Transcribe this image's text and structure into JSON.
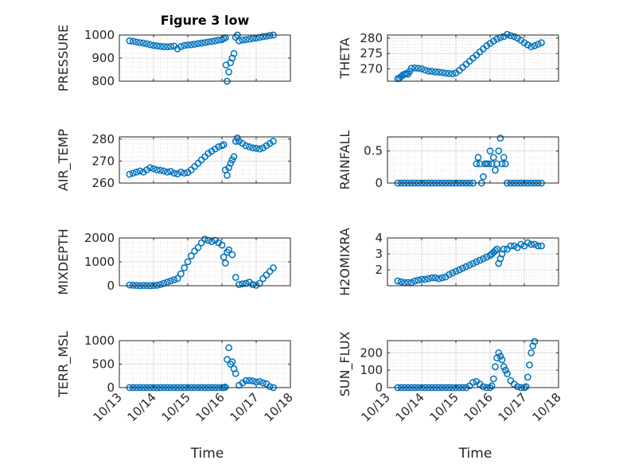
{
  "chart_data": {
    "type": "scatter",
    "title": "Figure 3 low",
    "xlabel": "Time",
    "xlim": [
      13,
      18
    ],
    "x_ticks": [
      13,
      14,
      15,
      16,
      17,
      18
    ],
    "x_tick_labels": [
      "10/13",
      "10/14",
      "10/15",
      "10/16",
      "10/17",
      "10/18"
    ],
    "marker_color": "#0072BD",
    "axis_color": "#262626",
    "grid_color": "#d9d9d9",
    "panels": [
      {
        "id": "pressure",
        "title": "Figure 3 low",
        "ylabel": "PRESSURE",
        "ylim": [
          800,
          1000
        ],
        "y_ticks": [
          800,
          900,
          1000
        ],
        "y_tick_labels": [
          "800",
          "900",
          "1000"
        ],
        "x": [
          13.3,
          13.4,
          13.5,
          13.6,
          13.7,
          13.8,
          13.9,
          14.0,
          14.1,
          14.2,
          14.3,
          14.4,
          14.5,
          14.6,
          14.7,
          14.8,
          14.9,
          15.0,
          15.1,
          15.2,
          15.3,
          15.4,
          15.5,
          15.6,
          15.7,
          15.8,
          15.9,
          16.0,
          16.05,
          16.1,
          16.12,
          16.15,
          16.2,
          16.25,
          16.3,
          16.35,
          16.4,
          16.45,
          16.5,
          16.6,
          16.7,
          16.8,
          16.9,
          17.0,
          17.1,
          17.2,
          17.3,
          17.4,
          17.5
        ],
        "y": [
          975,
          973,
          970,
          967,
          965,
          962,
          958,
          955,
          953,
          951,
          950,
          949,
          950,
          952,
          940,
          950,
          955,
          957,
          958,
          960,
          963,
          965,
          967,
          970,
          972,
          975,
          978,
          980,
          985,
          988,
          870,
          800,
          840,
          880,
          900,
          920,
          990,
          1000,
          975,
          978,
          980,
          982,
          985,
          987,
          990,
          993,
          995,
          998,
          1000
        ]
      },
      {
        "id": "theta",
        "ylabel": "THETA",
        "ylim": [
          266,
          281
        ],
        "y_ticks": [
          270,
          275,
          280
        ],
        "y_tick_labels": [
          "270",
          "275",
          "280"
        ],
        "x": [
          13.3,
          13.35,
          13.4,
          13.45,
          13.5,
          13.55,
          13.6,
          13.65,
          13.7,
          13.8,
          13.9,
          14.0,
          14.1,
          14.2,
          14.3,
          14.4,
          14.5,
          14.6,
          14.7,
          14.8,
          14.9,
          15.0,
          15.1,
          15.2,
          15.3,
          15.4,
          15.5,
          15.6,
          15.7,
          15.8,
          15.9,
          16.0,
          16.1,
          16.2,
          16.3,
          16.4,
          16.5,
          16.6,
          16.7,
          16.8,
          16.9,
          17.0,
          17.1,
          17.2,
          17.3,
          17.4,
          17.5
        ],
        "y": [
          266.8,
          267.0,
          267.5,
          268.0,
          268.3,
          268.5,
          268.3,
          269.2,
          270.2,
          270.3,
          270.2,
          270.0,
          269.6,
          269.3,
          269.2,
          269.0,
          268.9,
          268.8,
          268.6,
          268.5,
          268.4,
          268.7,
          269.5,
          270.5,
          271.5,
          272.5,
          273.5,
          274.5,
          275.5,
          276.5,
          277.5,
          278.3,
          279.0,
          279.7,
          280.2,
          280.5,
          281.2,
          280.8,
          280.5,
          280.0,
          279.3,
          278.5,
          277.8,
          277.2,
          277.5,
          278.0,
          278.5
        ]
      },
      {
        "id": "air_temp",
        "ylabel": "AIR_TEMP",
        "ylim": [
          260,
          281
        ],
        "y_ticks": [
          260,
          270,
          280
        ],
        "y_tick_labels": [
          "260",
          "270",
          "280"
        ],
        "x": [
          13.3,
          13.4,
          13.5,
          13.6,
          13.7,
          13.8,
          13.9,
          14.0,
          14.1,
          14.2,
          14.3,
          14.4,
          14.5,
          14.6,
          14.7,
          14.8,
          14.9,
          15.0,
          15.1,
          15.2,
          15.3,
          15.4,
          15.5,
          15.6,
          15.7,
          15.8,
          15.9,
          16.0,
          16.05,
          16.1,
          16.15,
          16.2,
          16.25,
          16.3,
          16.35,
          16.4,
          16.45,
          16.5,
          16.6,
          16.7,
          16.8,
          16.9,
          17.0,
          17.1,
          17.2,
          17.3,
          17.4,
          17.5
        ],
        "y": [
          264.0,
          264.5,
          265.0,
          265.5,
          265.0,
          266.0,
          267.0,
          266.5,
          266.0,
          265.8,
          265.5,
          265.0,
          265.3,
          264.5,
          264.2,
          265.0,
          264.5,
          264.8,
          266.0,
          267.5,
          269.0,
          270.5,
          272.0,
          273.5,
          274.5,
          275.5,
          276.5,
          277.0,
          277.5,
          266.0,
          263.5,
          267.0,
          269.0,
          270.5,
          272.0,
          279.0,
          280.5,
          279.0,
          278.0,
          277.0,
          276.5,
          276.0,
          275.8,
          275.5,
          276.0,
          277.0,
          278.0,
          279.0
        ]
      },
      {
        "id": "rainfall",
        "ylabel": "RAINFALL",
        "ylim": [
          0,
          0.72
        ],
        "y_ticks": [
          0,
          0.5
        ],
        "y_tick_labels": [
          "0",
          "0.5"
        ],
        "x": [
          13.3,
          13.4,
          13.5,
          13.6,
          13.7,
          13.8,
          13.9,
          14.0,
          14.1,
          14.2,
          14.3,
          14.4,
          14.5,
          14.6,
          14.7,
          14.8,
          14.9,
          15.0,
          15.1,
          15.2,
          15.3,
          15.4,
          15.5,
          15.6,
          15.65,
          15.7,
          15.75,
          15.8,
          15.85,
          15.9,
          15.95,
          16.0,
          16.05,
          16.1,
          16.15,
          16.2,
          16.25,
          16.3,
          16.35,
          16.4,
          16.45,
          16.5,
          16.6,
          16.7,
          16.8,
          16.9,
          17.0,
          17.1,
          17.2,
          17.3,
          17.4,
          17.5
        ],
        "y": [
          0,
          0,
          0,
          0,
          0,
          0,
          0,
          0,
          0,
          0,
          0,
          0,
          0,
          0,
          0,
          0,
          0,
          0,
          0,
          0,
          0,
          0,
          0,
          0.3,
          0.4,
          0.3,
          0,
          0.1,
          0.3,
          0.3,
          0.3,
          0.5,
          0.3,
          0.4,
          0.2,
          0.3,
          0.5,
          0.7,
          0.3,
          0.4,
          0.3,
          0,
          0,
          0,
          0,
          0,
          0,
          0,
          0,
          0,
          0,
          0
        ]
      },
      {
        "id": "mixdepth",
        "ylabel": "MIXDEPTH",
        "ylim": [
          0,
          2000
        ],
        "y_ticks": [
          0,
          1000,
          2000
        ],
        "y_tick_labels": [
          "0",
          "1000",
          "2000"
        ],
        "x": [
          13.3,
          13.4,
          13.5,
          13.6,
          13.7,
          13.8,
          13.9,
          14.0,
          14.1,
          14.2,
          14.3,
          14.4,
          14.5,
          14.6,
          14.7,
          14.8,
          14.9,
          15.0,
          15.1,
          15.2,
          15.3,
          15.4,
          15.5,
          15.6,
          15.7,
          15.8,
          15.9,
          16.0,
          16.05,
          16.1,
          16.15,
          16.2,
          16.3,
          16.4,
          16.5,
          16.6,
          16.7,
          16.8,
          16.9,
          17.0,
          17.1,
          17.2,
          17.3,
          17.4,
          17.5
        ],
        "y": [
          30,
          20,
          10,
          0,
          10,
          5,
          0,
          10,
          20,
          50,
          100,
          150,
          200,
          250,
          300,
          500,
          750,
          1000,
          1250,
          1450,
          1600,
          1800,
          1950,
          1900,
          1850,
          1900,
          1800,
          1700,
          1200,
          950,
          1400,
          1500,
          1300,
          350,
          50,
          80,
          100,
          150,
          50,
          20,
          100,
          300,
          450,
          600,
          750
        ]
      },
      {
        "id": "h2omixra",
        "ylabel": "H2OMIXRA",
        "ylim": [
          1,
          4
        ],
        "y_ticks": [
          2,
          3,
          4
        ],
        "y_tick_labels": [
          "2",
          "3",
          "4"
        ],
        "x": [
          13.3,
          13.4,
          13.5,
          13.6,
          13.7,
          13.8,
          13.9,
          14.0,
          14.1,
          14.2,
          14.3,
          14.4,
          14.5,
          14.6,
          14.7,
          14.8,
          14.9,
          15.0,
          15.1,
          15.2,
          15.3,
          15.4,
          15.5,
          15.6,
          15.7,
          15.8,
          15.9,
          16.0,
          16.05,
          16.1,
          16.15,
          16.2,
          16.25,
          16.3,
          16.35,
          16.4,
          16.5,
          16.6,
          16.7,
          16.8,
          16.9,
          17.0,
          17.1,
          17.2,
          17.3,
          17.4,
          17.5
        ],
        "y": [
          1.3,
          1.25,
          1.2,
          1.2,
          1.2,
          1.3,
          1.35,
          1.4,
          1.4,
          1.45,
          1.5,
          1.5,
          1.45,
          1.5,
          1.55,
          1.7,
          1.8,
          1.9,
          2.0,
          2.1,
          2.2,
          2.3,
          2.4,
          2.5,
          2.6,
          2.7,
          2.8,
          2.9,
          3.0,
          3.1,
          3.2,
          3.3,
          2.4,
          2.7,
          3.0,
          3.3,
          3.3,
          3.5,
          3.5,
          3.4,
          3.6,
          3.5,
          3.7,
          3.6,
          3.6,
          3.5,
          3.5
        ]
      },
      {
        "id": "terr_msl",
        "ylabel": "TERR_MSL",
        "ylim": [
          0,
          1000
        ],
        "y_ticks": [
          0,
          500,
          1000
        ],
        "y_tick_labels": [
          "0",
          "500",
          "1000"
        ],
        "x": [
          13.3,
          13.4,
          13.5,
          13.6,
          13.7,
          13.8,
          13.9,
          14.0,
          14.1,
          14.2,
          14.3,
          14.4,
          14.5,
          14.6,
          14.7,
          14.8,
          14.9,
          15.0,
          15.1,
          15.2,
          15.3,
          15.4,
          15.5,
          15.6,
          15.7,
          15.8,
          15.9,
          16.0,
          16.05,
          16.1,
          16.15,
          16.2,
          16.25,
          16.3,
          16.35,
          16.4,
          16.5,
          16.6,
          16.7,
          16.8,
          16.9,
          17.0,
          17.1,
          17.2,
          17.3,
          17.4,
          17.5
        ],
        "y": [
          0,
          0,
          0,
          0,
          0,
          0,
          0,
          0,
          0,
          0,
          0,
          0,
          0,
          0,
          0,
          0,
          0,
          0,
          0,
          0,
          0,
          0,
          0,
          0,
          0,
          0,
          0,
          0,
          0,
          10,
          600,
          850,
          500,
          550,
          400,
          300,
          50,
          100,
          150,
          150,
          140,
          120,
          130,
          100,
          80,
          20,
          0
        ]
      },
      {
        "id": "sun_flux",
        "ylabel": "SUN_FLUX",
        "ylim": [
          0,
          270
        ],
        "y_ticks": [
          0,
          100,
          200
        ],
        "y_tick_labels": [
          "0",
          "100",
          "200"
        ],
        "x": [
          13.3,
          13.4,
          13.5,
          13.6,
          13.7,
          13.8,
          13.9,
          14.0,
          14.1,
          14.2,
          14.3,
          14.4,
          14.5,
          14.6,
          14.7,
          14.8,
          14.9,
          15.0,
          15.1,
          15.2,
          15.3,
          15.4,
          15.5,
          15.6,
          15.7,
          15.8,
          15.9,
          16.0,
          16.05,
          16.1,
          16.15,
          16.2,
          16.25,
          16.3,
          16.35,
          16.4,
          16.45,
          16.5,
          16.6,
          16.7,
          16.8,
          16.9,
          17.0,
          17.05,
          17.1,
          17.15,
          17.2,
          17.25,
          17.3
        ],
        "y": [
          0,
          0,
          0,
          0,
          0,
          0,
          0,
          0,
          0,
          0,
          0,
          0,
          0,
          0,
          0,
          0,
          0,
          0,
          0,
          0,
          0,
          10,
          30,
          35,
          20,
          5,
          0,
          0,
          10,
          50,
          120,
          170,
          200,
          180,
          160,
          120,
          100,
          80,
          40,
          20,
          5,
          0,
          0,
          5,
          60,
          130,
          200,
          240,
          265
        ]
      }
    ]
  }
}
